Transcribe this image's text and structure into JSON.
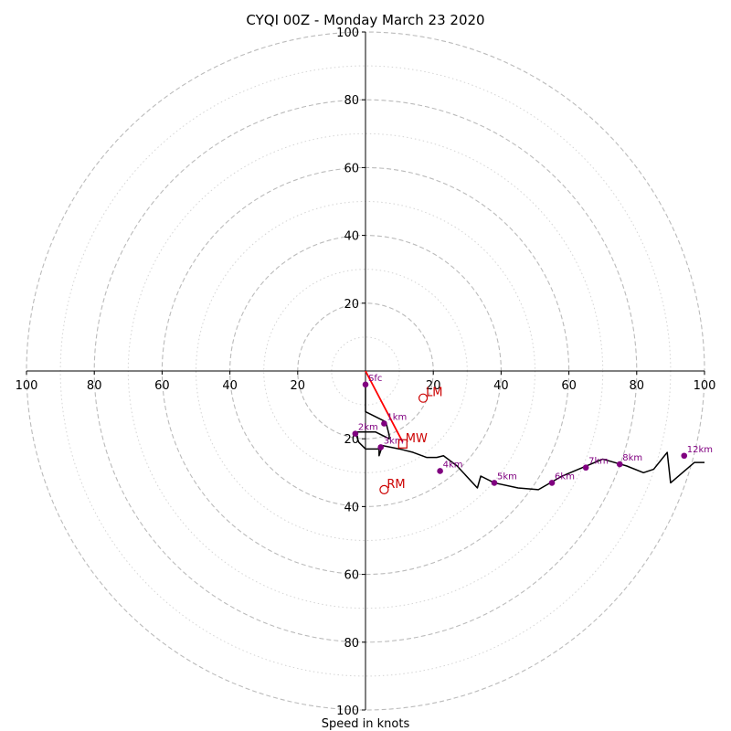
{
  "chart_data": {
    "type": "hodograph",
    "title": "CYQI 00Z - Monday March 23 2020",
    "xlabel": "Speed in knots",
    "range": 100,
    "rings_major": [
      20,
      40,
      60,
      80,
      100
    ],
    "rings_minor": [
      10,
      30,
      50,
      70,
      90
    ],
    "x_ticks": [
      {
        "v": -100,
        "label": "100"
      },
      {
        "v": -80,
        "label": "80"
      },
      {
        "v": -60,
        "label": "60"
      },
      {
        "v": -40,
        "label": "40"
      },
      {
        "v": -20,
        "label": "20"
      },
      {
        "v": 20,
        "label": "20"
      },
      {
        "v": 40,
        "label": "40"
      },
      {
        "v": 60,
        "label": "60"
      },
      {
        "v": 80,
        "label": "80"
      },
      {
        "v": 100,
        "label": "100"
      }
    ],
    "y_ticks": [
      {
        "v": 100,
        "label": "100"
      },
      {
        "v": 80,
        "label": "80"
      },
      {
        "v": 60,
        "label": "60"
      },
      {
        "v": 40,
        "label": "40"
      },
      {
        "v": 20,
        "label": "20"
      },
      {
        "v": -20,
        "label": "20"
      },
      {
        "v": -40,
        "label": "40"
      },
      {
        "v": -60,
        "label": "60"
      },
      {
        "v": -80,
        "label": "80"
      },
      {
        "v": -100,
        "label": "100"
      }
    ],
    "trace": [
      [
        0,
        -4
      ],
      [
        0,
        -12
      ],
      [
        6,
        -15
      ],
      [
        7,
        -19
      ],
      [
        7,
        -20
      ],
      [
        3,
        -18
      ],
      [
        -3,
        -18
      ],
      [
        -2,
        -21
      ],
      [
        0,
        -23
      ],
      [
        4,
        -23
      ],
      [
        4,
        -25
      ],
      [
        5,
        -22
      ],
      [
        10,
        -23
      ],
      [
        14,
        -24
      ],
      [
        18,
        -25.5
      ],
      [
        21,
        -25.5
      ],
      [
        23,
        -25
      ],
      [
        27,
        -28
      ],
      [
        33,
        -34.5
      ],
      [
        34,
        -31
      ],
      [
        38,
        -33
      ],
      [
        45,
        -34.5
      ],
      [
        51,
        -35
      ],
      [
        58,
        -31
      ],
      [
        64,
        -28.5
      ],
      [
        70,
        -26
      ],
      [
        77,
        -28
      ],
      [
        82,
        -30
      ],
      [
        85,
        -29
      ],
      [
        89,
        -24
      ],
      [
        90,
        -33
      ],
      [
        97,
        -27
      ],
      [
        100,
        -27
      ]
    ],
    "levels": [
      {
        "label": "Sfc",
        "u": 0,
        "v": -4
      },
      {
        "label": "1km",
        "u": 5.5,
        "v": -15.5
      },
      {
        "label": "2km",
        "u": -3,
        "v": -18.5
      },
      {
        "label": "3km",
        "u": 4.5,
        "v": -22.5
      },
      {
        "label": "4km",
        "u": 22,
        "v": -29.5
      },
      {
        "label": "5km",
        "u": 38,
        "v": -33
      },
      {
        "label": "6km",
        "u": 55,
        "v": -33
      },
      {
        "label": "7km",
        "u": 65,
        "v": -28.5
      },
      {
        "label": "8km",
        "u": 75,
        "v": -27.5
      },
      {
        "label": "12km",
        "u": 94,
        "v": -25
      }
    ],
    "shear_vector": {
      "from": [
        0,
        0
      ],
      "to": [
        11,
        -21
      ]
    },
    "markers": [
      {
        "label": "LM",
        "u": 17,
        "v": -8,
        "shape": "circle"
      },
      {
        "label": "MW",
        "u": 11,
        "v": -21.5,
        "shape": "square"
      },
      {
        "label": "RM",
        "u": 5.5,
        "v": -35,
        "shape": "circle"
      }
    ],
    "colors": {
      "trace": "#000000",
      "level_point": "#800080",
      "shear": "#ff0000",
      "marker": "#cc0000",
      "ring": "#bbbbbb"
    }
  }
}
